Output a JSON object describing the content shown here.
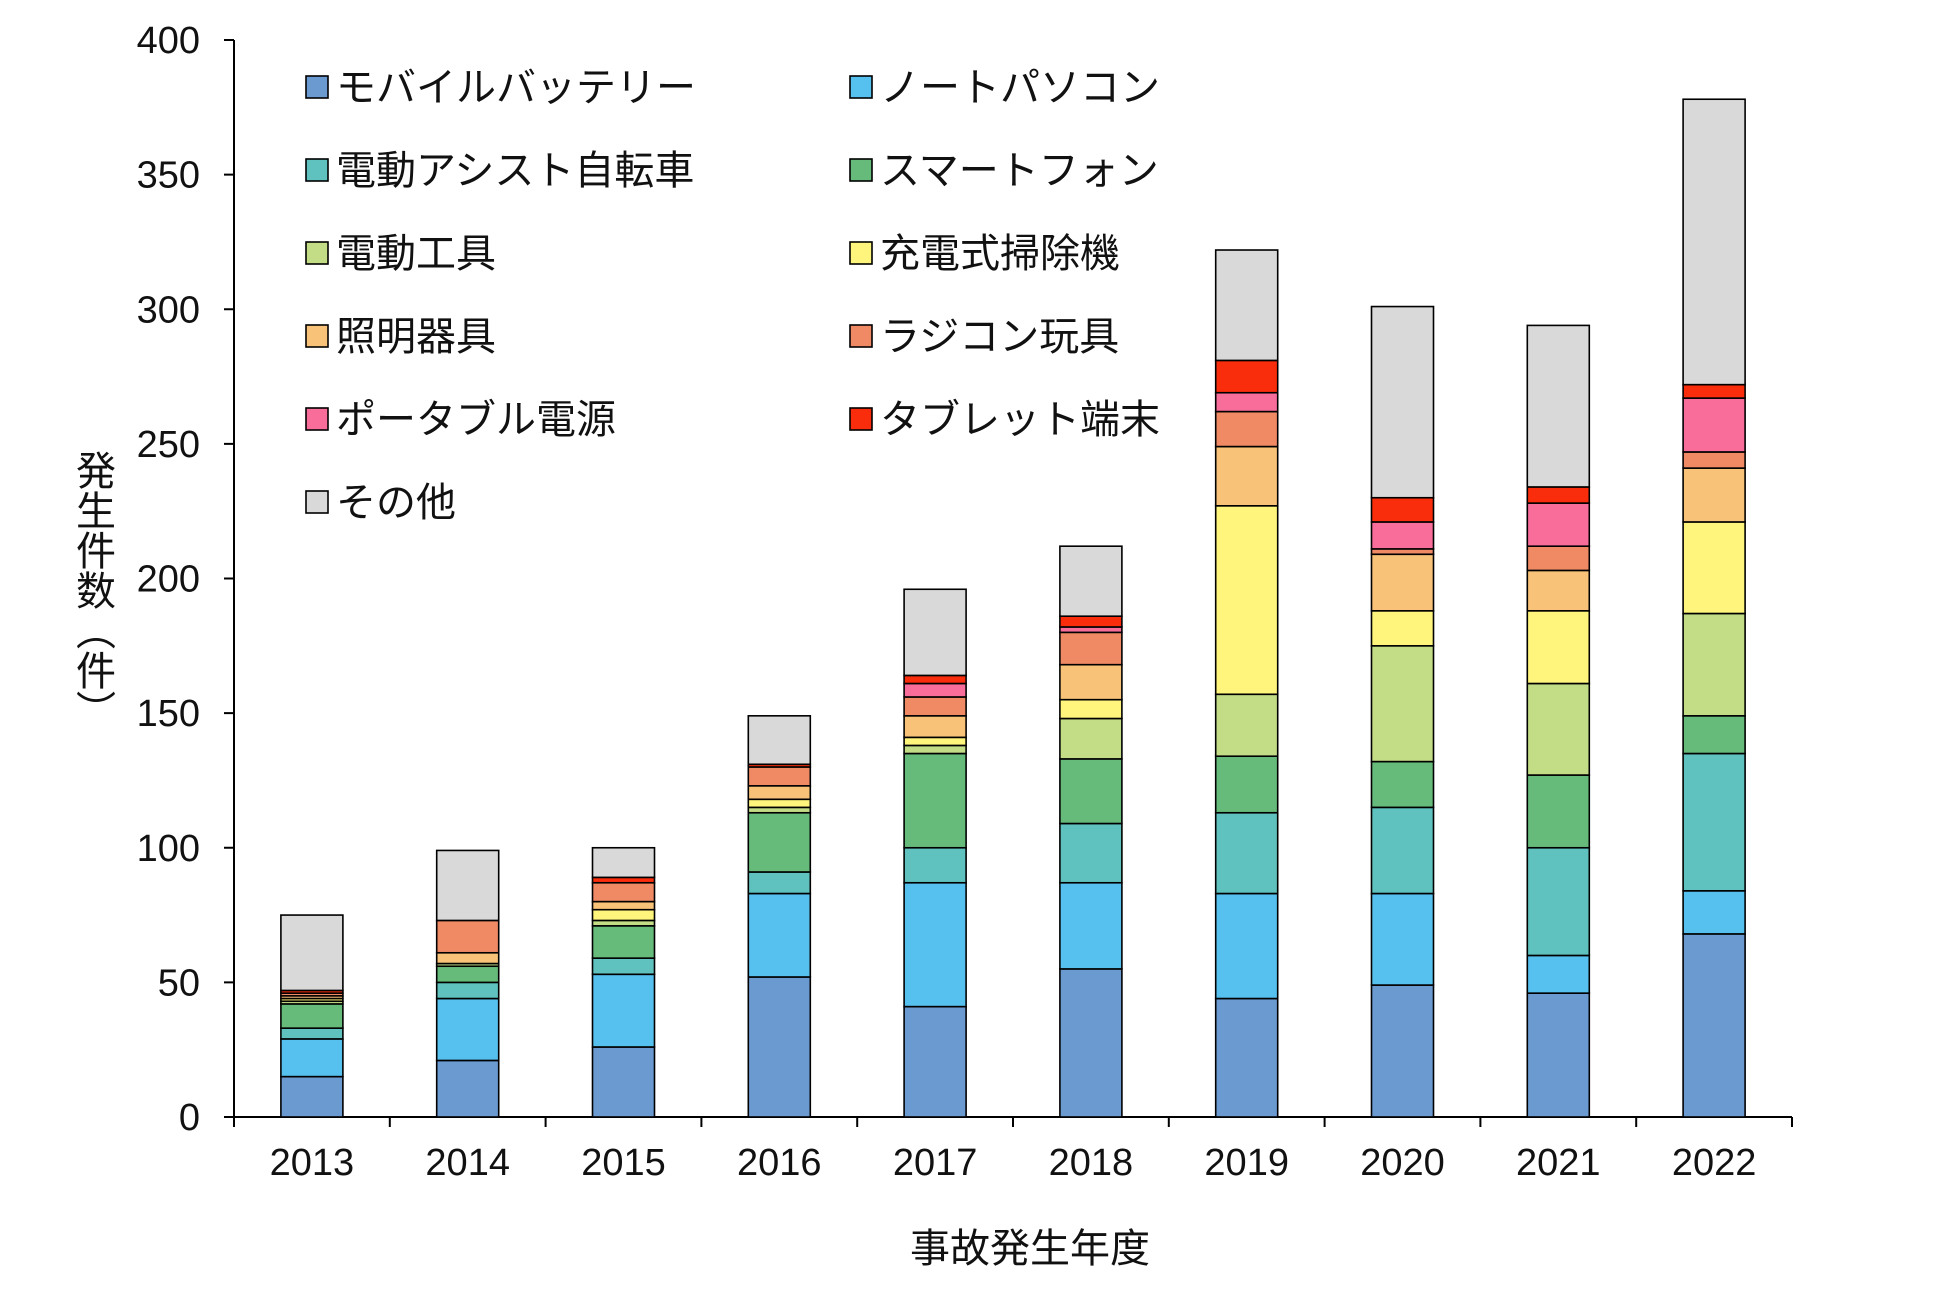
{
  "chart_data": {
    "type": "bar",
    "stacked": true,
    "title": "",
    "xlabel": "事故発生年度",
    "ylabel": "発生件数（件）",
    "ylim": [
      0,
      400
    ],
    "yticks": [
      0,
      50,
      100,
      150,
      200,
      250,
      300,
      350,
      400
    ],
    "categories": [
      "2013",
      "2014",
      "2015",
      "2016",
      "2017",
      "2018",
      "2019",
      "2020",
      "2021",
      "2022"
    ],
    "legend_position": "top-left",
    "series": [
      {
        "name": "モバイルバッテリー",
        "color": "#6a9ad0",
        "values": [
          15,
          21,
          26,
          52,
          41,
          55,
          44,
          49,
          46,
          68
        ]
      },
      {
        "name": "ノートパソコン",
        "color": "#56c0ee",
        "values": [
          14,
          23,
          27,
          31,
          46,
          32,
          39,
          34,
          14,
          16
        ]
      },
      {
        "name": "電動アシスト自転車",
        "color": "#5fc2be",
        "values": [
          4,
          6,
          6,
          8,
          13,
          22,
          30,
          32,
          40,
          51
        ]
      },
      {
        "name": "スマートフォン",
        "color": "#66bb7b",
        "values": [
          9,
          6,
          12,
          22,
          35,
          24,
          21,
          17,
          27,
          14
        ]
      },
      {
        "name": "電動工具",
        "color": "#c3dc86",
        "values": [
          1,
          1,
          2,
          2,
          3,
          15,
          23,
          43,
          34,
          38
        ]
      },
      {
        "name": "充電式掃除機",
        "color": "#fff47c",
        "values": [
          1,
          0,
          4,
          3,
          3,
          7,
          70,
          13,
          27,
          34
        ]
      },
      {
        "name": "照明器具",
        "color": "#f8c378",
        "values": [
          1,
          4,
          3,
          5,
          8,
          13,
          22,
          21,
          15,
          20
        ]
      },
      {
        "name": "ラジコン玩具",
        "color": "#ef8a64",
        "values": [
          1,
          12,
          7,
          7,
          7,
          12,
          13,
          2,
          9,
          6
        ]
      },
      {
        "name": "ポータブル電源",
        "color": "#f96d9b",
        "values": [
          0,
          0,
          0,
          0,
          5,
          2,
          7,
          10,
          16,
          20
        ]
      },
      {
        "name": "タブレット端末",
        "color": "#f92d0c",
        "values": [
          1,
          0,
          2,
          1,
          3,
          4,
          12,
          9,
          6,
          5
        ]
      },
      {
        "name": "その他",
        "color": "#d9d9d9",
        "values": [
          28,
          26,
          11,
          18,
          32,
          26,
          41,
          71,
          60,
          106
        ]
      }
    ]
  }
}
